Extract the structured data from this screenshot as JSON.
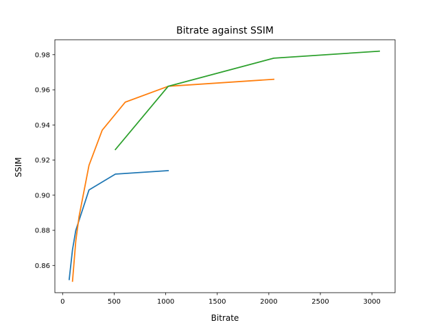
{
  "chart_data": {
    "type": "line",
    "title": "Bitrate against SSIM",
    "xlabel": "Bitrate",
    "ylabel": "SSIM",
    "xlim": [
      -75,
      3225
    ],
    "ylim": [
      0.8445,
      0.9885
    ],
    "xticks": [
      0,
      500,
      1000,
      1500,
      2000,
      2500,
      3000
    ],
    "yticks": [
      0.86,
      0.88,
      0.9,
      0.92,
      0.94,
      0.96,
      0.98
    ],
    "xtick_labels": [
      "0",
      "500",
      "1000",
      "1500",
      "2000",
      "2500",
      "3000"
    ],
    "ytick_labels": [
      "0.86",
      "0.88",
      "0.90",
      "0.92",
      "0.94",
      "0.96",
      "0.98"
    ],
    "grid": false,
    "series": [
      {
        "color": "#1f77b4",
        "points": [
          [
            64,
            0.852
          ],
          [
            96,
            0.869
          ],
          [
            128,
            0.88
          ],
          [
            256,
            0.903
          ],
          [
            512,
            0.912
          ],
          [
            1024,
            0.914
          ]
        ]
      },
      {
        "color": "#ff7f0e",
        "points": [
          [
            96,
            0.851
          ],
          [
            128,
            0.874
          ],
          [
            160,
            0.888
          ],
          [
            256,
            0.917
          ],
          [
            384,
            0.937
          ],
          [
            608,
            0.953
          ],
          [
            1024,
            0.962
          ],
          [
            2048,
            0.966
          ]
        ]
      },
      {
        "color": "#2ca02c",
        "points": [
          [
            512,
            0.926
          ],
          [
            1024,
            0.962
          ],
          [
            2048,
            0.978
          ],
          [
            3072,
            0.982
          ]
        ]
      }
    ]
  }
}
